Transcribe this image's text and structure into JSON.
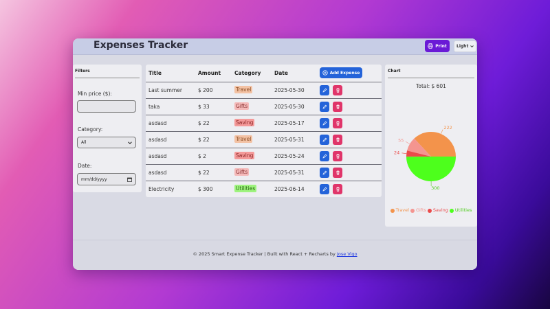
{
  "header": {
    "title": "Expenses Tracker",
    "print_label": "Print",
    "theme_value": "Light"
  },
  "filters": {
    "title": "Filters",
    "min_price_label": "Min price ($):",
    "min_price_value": "",
    "category_label": "Category:",
    "category_value": "All",
    "date_label": "Date:",
    "date_placeholder": "mm/dd/yyyy"
  },
  "table": {
    "columns": [
      "Title",
      "Amount",
      "Category",
      "Date"
    ],
    "add_label": "Add Expense",
    "rows": [
      {
        "title": "Last summer",
        "amount": "$ 200",
        "category": "Travel",
        "date": "2025-05-30"
      },
      {
        "title": "taka",
        "amount": "$ 33",
        "category": "Gifts",
        "date": "2025-05-30"
      },
      {
        "title": "asdasd",
        "amount": "$ 22",
        "category": "Saving",
        "date": "2025-05-17"
      },
      {
        "title": "asdasd",
        "amount": "$ 22",
        "category": "Travel",
        "date": "2025-05-31"
      },
      {
        "title": "asdasd",
        "amount": "$ 2",
        "category": "Saving",
        "date": "2025-05-24"
      },
      {
        "title": "asdasd",
        "amount": "$ 22",
        "category": "Gifts",
        "date": "2025-05-31"
      },
      {
        "title": "Electricity",
        "amount": "$ 300",
        "category": "Utilities",
        "date": "2025-06-14"
      }
    ]
  },
  "category_colors": {
    "Travel": {
      "bg": "#f3c2a4",
      "fg": "#8a4a22"
    },
    "Gifts": {
      "bg": "#f4b9b9",
      "fg": "#8a3434"
    },
    "Saving": {
      "bg": "#f49a9a",
      "fg": "#8a2424"
    },
    "Utilities": {
      "bg": "#9ef37e",
      "fg": "#2a6a12"
    }
  },
  "chart": {
    "title": "Chart",
    "total_label": "Total: $ 601"
  },
  "chart_data": {
    "type": "pie",
    "categories": [
      "Travel",
      "Gifts",
      "Saving",
      "Utilities"
    ],
    "values": [
      222,
      55,
      24,
      300
    ],
    "colors": [
      "#f3934b",
      "#f49590",
      "#ea4a4a",
      "#4dff1c"
    ],
    "label_colors": [
      "#f3934b",
      "#f49590",
      "#ea4a4a",
      "#4dcc1c"
    ],
    "legend": "bottom"
  },
  "footer": {
    "text": "© 2025 Smart Expense Tracker | Built with React + Recharts by ",
    "link": "Jose Vigo"
  }
}
